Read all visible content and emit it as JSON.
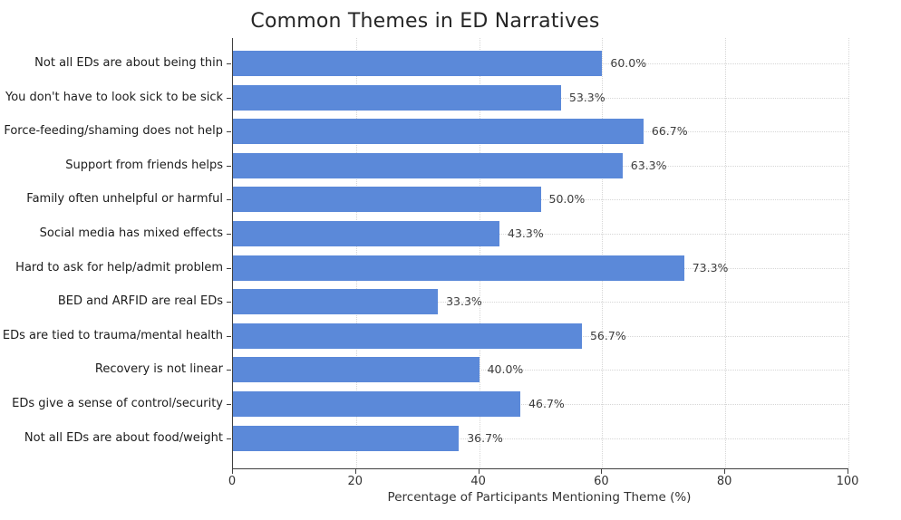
{
  "chart_data": {
    "type": "bar",
    "orientation": "horizontal",
    "title": "Common Themes in ED Narratives",
    "xlabel": "Percentage of Participants Mentioning Theme (%)",
    "ylabel": "",
    "categories": [
      "Not all EDs are about being thin",
      "You don't have to look sick to be sick",
      "Force-feeding/shaming does not help",
      "Support from friends helps",
      "Family often unhelpful or harmful",
      "Social media has mixed effects",
      "Hard to ask for help/admit problem",
      "BED and ARFID are real EDs",
      "EDs are tied to trauma/mental health",
      "Recovery is not linear",
      "EDs give a sense of control/security",
      "Not all EDs are about food/weight"
    ],
    "values": [
      60.0,
      53.3,
      66.7,
      63.3,
      50.0,
      43.3,
      73.3,
      33.3,
      56.7,
      40.0,
      46.7,
      36.7
    ],
    "value_labels": [
      "60.0%",
      "53.3%",
      "66.7%",
      "63.3%",
      "50.0%",
      "43.3%",
      "73.3%",
      "33.3%",
      "56.7%",
      "40.0%",
      "46.7%",
      "36.7%"
    ],
    "xlim": [
      0,
      100
    ],
    "xticks": [
      0,
      20,
      40,
      60,
      80,
      100
    ],
    "grid": "dotted, both axes, light gray",
    "legend": "none",
    "bar_color": "#5b89d9",
    "grid_color": "#d6d6d6",
    "spine_color": "#3f3f3f",
    "value_label_color": "#3d3d3d",
    "category_label_color": "#1c1c1c"
  }
}
